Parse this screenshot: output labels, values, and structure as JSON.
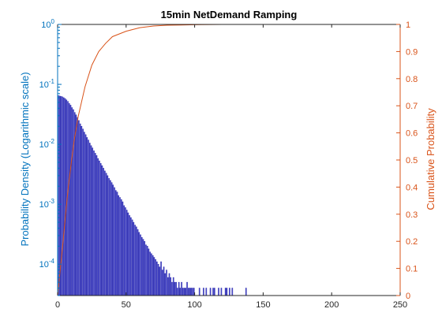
{
  "chart_data": {
    "type": "bar",
    "title": "15min NetDemand Ramping",
    "x_axis": {
      "range": [
        0,
        250
      ],
      "ticks": [
        "0",
        "50",
        "100",
        "150",
        "200",
        "250"
      ]
    },
    "y_left": {
      "label": "Probability Density (Logarithmic scale)",
      "scale": "log",
      "range": [
        3e-05,
        1
      ],
      "ticks": [
        {
          "value": 0.0001,
          "base": "10",
          "exp": "-4"
        },
        {
          "value": 0.001,
          "base": "10",
          "exp": "-3"
        },
        {
          "value": 0.01,
          "base": "10",
          "exp": "-2"
        },
        {
          "value": 0.1,
          "base": "10",
          "exp": "-1"
        },
        {
          "value": 1,
          "base": "10",
          "exp": "0"
        }
      ],
      "color": "#0072BD"
    },
    "y_right": {
      "label": "Cumulative Probability",
      "scale": "linear",
      "range": [
        0,
        1
      ],
      "ticks": [
        "0",
        "0.1",
        "0.2",
        "0.3",
        "0.4",
        "0.5",
        "0.6",
        "0.7",
        "0.8",
        "0.9",
        "1"
      ],
      "color": "#D95319"
    },
    "series": [
      {
        "kind": "histogram",
        "axis": "left",
        "color": "#1f1fa8",
        "bins": [
          [
            0.5,
            0.065
          ],
          [
            1.5,
            0.064
          ],
          [
            2.5,
            0.063
          ],
          [
            3.5,
            0.062
          ],
          [
            4.5,
            0.06
          ],
          [
            5.5,
            0.058
          ],
          [
            6.5,
            0.055
          ],
          [
            7.5,
            0.052
          ],
          [
            8.5,
            0.048
          ],
          [
            9.5,
            0.045
          ],
          [
            10.5,
            0.041
          ],
          [
            11.5,
            0.038
          ],
          [
            12.5,
            0.034
          ],
          [
            13.5,
            0.031
          ],
          [
            14.5,
            0.028
          ],
          [
            15.5,
            0.025
          ],
          [
            16.5,
            0.022
          ],
          [
            17.5,
            0.02
          ],
          [
            18.5,
            0.018
          ],
          [
            19.5,
            0.016
          ],
          [
            20.5,
            0.0145
          ],
          [
            21.5,
            0.013
          ],
          [
            22.5,
            0.0118
          ],
          [
            23.5,
            0.0105
          ],
          [
            24.5,
            0.0095
          ],
          [
            25.5,
            0.0087
          ],
          [
            26.5,
            0.0078
          ],
          [
            27.5,
            0.0071
          ],
          [
            28.5,
            0.0065
          ],
          [
            29.5,
            0.0058
          ],
          [
            30.5,
            0.0053
          ],
          [
            31.5,
            0.0048
          ],
          [
            32.5,
            0.0044
          ],
          [
            33.5,
            0.004
          ],
          [
            34.5,
            0.0036
          ],
          [
            35.5,
            0.0033
          ],
          [
            36.5,
            0.003
          ],
          [
            37.5,
            0.0027
          ],
          [
            38.5,
            0.0025
          ],
          [
            39.5,
            0.0023
          ],
          [
            40.5,
            0.0021
          ],
          [
            41.5,
            0.0019
          ],
          [
            42.5,
            0.0017
          ],
          [
            43.5,
            0.0016
          ],
          [
            44.5,
            0.0014
          ],
          [
            45.5,
            0.0013
          ],
          [
            46.5,
            0.0012
          ],
          [
            47.5,
            0.0011
          ],
          [
            48.5,
            0.00095
          ],
          [
            49.5,
            0.00088
          ],
          [
            50.5,
            0.0008
          ],
          [
            51.5,
            0.00072
          ],
          [
            52.5,
            0.00065
          ],
          [
            53.5,
            0.0006
          ],
          [
            54.5,
            0.00055
          ],
          [
            55.5,
            0.0005
          ],
          [
            56.5,
            0.00045
          ],
          [
            57.5,
            0.00042
          ],
          [
            58.5,
            0.00038
          ],
          [
            59.5,
            0.00034
          ],
          [
            60.5,
            0.00031
          ],
          [
            61.5,
            0.00028
          ],
          [
            62.5,
            0.00026
          ],
          [
            63.5,
            0.00024
          ],
          [
            64.5,
            0.00021
          ],
          [
            65.5,
            0.0002
          ],
          [
            66.5,
            0.00018
          ],
          [
            67.5,
            0.00016
          ],
          [
            68.5,
            0.00015
          ],
          [
            69.5,
            0.00014
          ],
          [
            70.5,
            0.00013
          ],
          [
            71.5,
            0.00012
          ],
          [
            72.5,
            0.00011
          ],
          [
            73.5,
            0.0001
          ],
          [
            74.5,
            9e-05
          ],
          [
            75.5,
            0.00011
          ],
          [
            76.5,
            8e-05
          ],
          [
            77.5,
            9e-05
          ],
          [
            78.5,
            7e-05
          ],
          [
            79.5,
            8e-05
          ],
          [
            80.5,
            6e-05
          ],
          [
            81.5,
            7e-05
          ],
          [
            82.5,
            6e-05
          ],
          [
            83.5,
            5e-05
          ],
          [
            84.5,
            6e-05
          ],
          [
            85.5,
            5e-05
          ],
          [
            86.5,
            5e-05
          ],
          [
            87.5,
            4e-05
          ],
          [
            88.5,
            5e-05
          ],
          [
            89.5,
            4e-05
          ],
          [
            90.5,
            5e-05
          ],
          [
            91.5,
            4e-05
          ],
          [
            92.5,
            4e-05
          ],
          [
            93.5,
            4e-05
          ],
          [
            94.5,
            5e-05
          ],
          [
            95.5,
            4e-05
          ],
          [
            96.5,
            4e-05
          ],
          [
            97.5,
            4e-05
          ],
          [
            98.5,
            4e-05
          ],
          [
            99.5,
            4e-05
          ],
          [
            103.5,
            4e-05
          ],
          [
            106.5,
            4e-05
          ],
          [
            108.5,
            4e-05
          ],
          [
            111.5,
            4e-05
          ],
          [
            113.5,
            4e-05
          ],
          [
            114.5,
            4e-05
          ],
          [
            117.5,
            4e-05
          ],
          [
            119.5,
            4e-05
          ],
          [
            122.5,
            4e-05
          ],
          [
            123.5,
            4e-05
          ],
          [
            125.5,
            4e-05
          ],
          [
            127.5,
            4e-05
          ],
          [
            137.5,
            4e-05
          ]
        ]
      },
      {
        "kind": "line",
        "axis": "right",
        "color": "#D95319",
        "x": [
          0,
          2,
          4,
          6,
          8,
          10,
          12,
          15,
          20,
          25,
          30,
          35,
          40,
          50,
          60,
          70,
          80,
          90,
          100,
          120,
          150
        ],
        "y": [
          0,
          0.1,
          0.2,
          0.31,
          0.41,
          0.49,
          0.57,
          0.66,
          0.77,
          0.85,
          0.9,
          0.93,
          0.955,
          0.975,
          0.988,
          0.994,
          0.997,
          0.998,
          0.999,
          1.0,
          1.0
        ]
      }
    ]
  }
}
